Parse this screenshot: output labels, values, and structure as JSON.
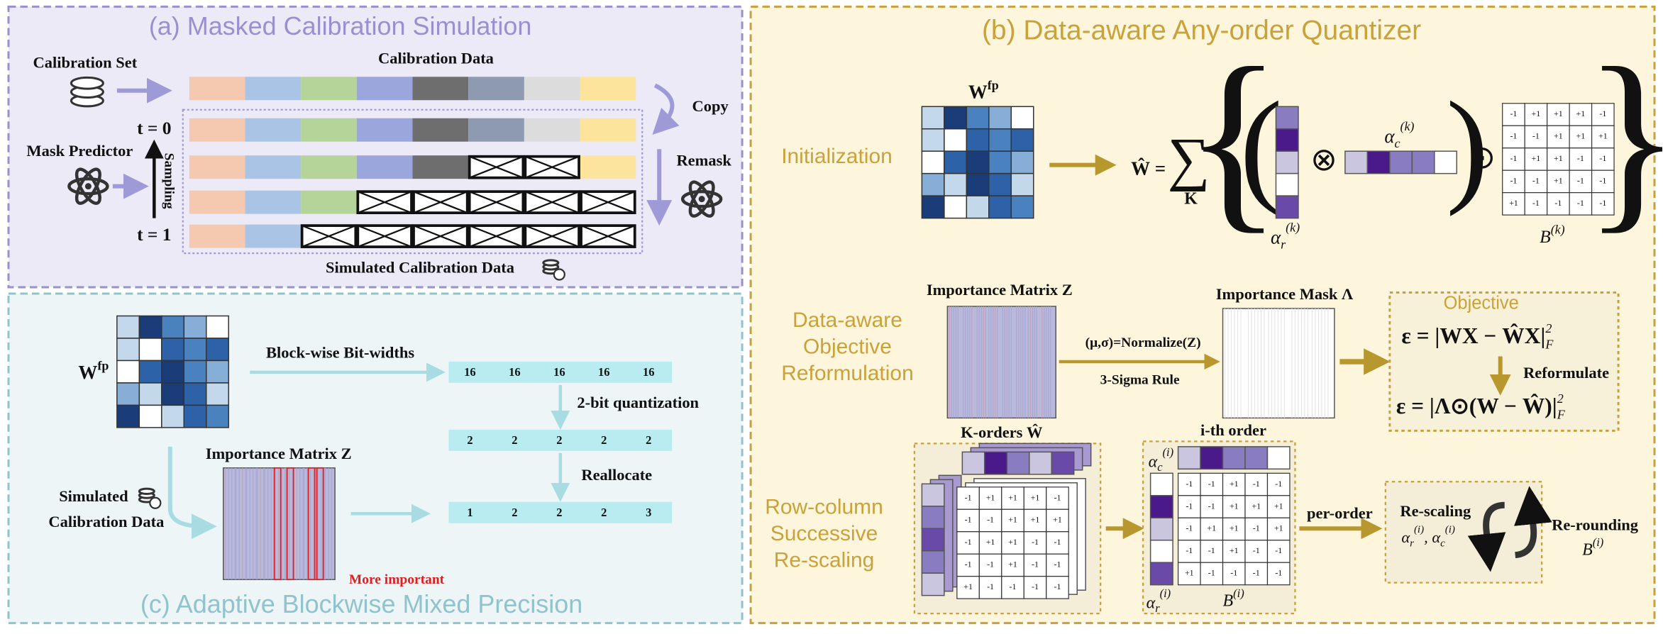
{
  "panel_a": {
    "title": "(a) Masked Calibration Simulation",
    "calibration_set": "Calibration Set",
    "calibration_data": "Calibration Data",
    "copy": "Copy",
    "remask": "Remask",
    "mask_predictor": "Mask Predictor",
    "sampling": "Sampling",
    "t0": "t = 0",
    "t1": "t = 1",
    "simulated_calibration_data": "Simulated Calibration Data"
  },
  "panel_c": {
    "title": "(c) Adaptive Blockwise Mixed Precision",
    "w": "W",
    "fp": "fp",
    "block_wise": "Block-wise Bit-widths",
    "quantization": "2-bit quantization",
    "reallocate": "Reallocate",
    "importance_matrix": "Importance Matrix Z",
    "more_important": "More important",
    "simulated": [
      "Simulated",
      "Calibration Data"
    ],
    "bit_rows": [
      [
        16,
        16,
        16,
        16,
        16
      ],
      [
        2,
        2,
        2,
        2,
        2
      ],
      [
        1,
        2,
        2,
        2,
        3
      ]
    ]
  },
  "panel_b": {
    "title": "(b) Data-aware Any-order Quantizer",
    "initialization": "Initialization",
    "w": "W",
    "fp": "fp",
    "w_hat_eq": "Ŵ =",
    "sum": "∑",
    "sum_index": "K",
    "alpha": "α",
    "r": "r",
    "c": "c",
    "k_sup": "(k)",
    "i_sup": "(i)",
    "otimes": "⊗",
    "odot": "⊙",
    "B": "B",
    "b_k_matrix": [
      [
        "-1",
        "+1",
        "+1",
        "+1",
        "-1"
      ],
      [
        "-1",
        "-1",
        "+1",
        "+1",
        "+1"
      ],
      [
        "-1",
        "+1",
        "+1",
        "-1",
        "-1"
      ],
      [
        "-1",
        "-1",
        "+1",
        "-1",
        "-1"
      ],
      [
        "+1",
        "-1",
        "-1",
        "-1",
        "-1"
      ]
    ],
    "data_aware": [
      "Data-aware",
      "Objective",
      "Reformulation"
    ],
    "importance_matrix": "Importance Matrix Z",
    "normalize": "(μ,σ)=Normalize(Z)",
    "sigma_rule": "3-Sigma Rule",
    "importance_mask": "Importance Mask Λ",
    "objective": "Objective",
    "formula1": {
      "main": "ε = |WX − ŴX|",
      "sup": "2",
      "sub": "F"
    },
    "reformulate": "Reformulate",
    "formula2": {
      "main": "ε = |Λ⊙(W − Ŵ)|",
      "sup": "2",
      "sub": "F"
    },
    "row_column": [
      "Row-column",
      "Successive",
      "Re-scaling"
    ],
    "k_orders": "K-orders Ŵ",
    "k_matrix": [
      [
        "-1",
        "+1",
        "+1",
        "+1",
        "-1"
      ],
      [
        "-1",
        "-1",
        "+1",
        "+1",
        "+1"
      ],
      [
        "-1",
        "+1",
        "+1",
        "-1",
        "-1"
      ],
      [
        "-1",
        "-1",
        "+1",
        "-1",
        "-1"
      ],
      [
        "+1",
        "-1",
        "-1",
        "-1",
        "-1"
      ]
    ],
    "i_th": "i-th order",
    "i_matrix": [
      [
        "-1",
        "-1",
        "+1",
        "-1",
        "-1"
      ],
      [
        "-1",
        "-1",
        "+1",
        "+1",
        "+1"
      ],
      [
        "-1",
        "+1",
        "+1",
        "-1",
        "+1"
      ],
      [
        "-1",
        "-1",
        "+1",
        "-1",
        "-1"
      ],
      [
        "+1",
        "-1",
        "-1",
        "-1",
        "-1"
      ]
    ],
    "per_order": "per-order",
    "rescaling": "Re-scaling",
    "comma": ", ",
    "rerounding": "Re-rounding"
  }
}
